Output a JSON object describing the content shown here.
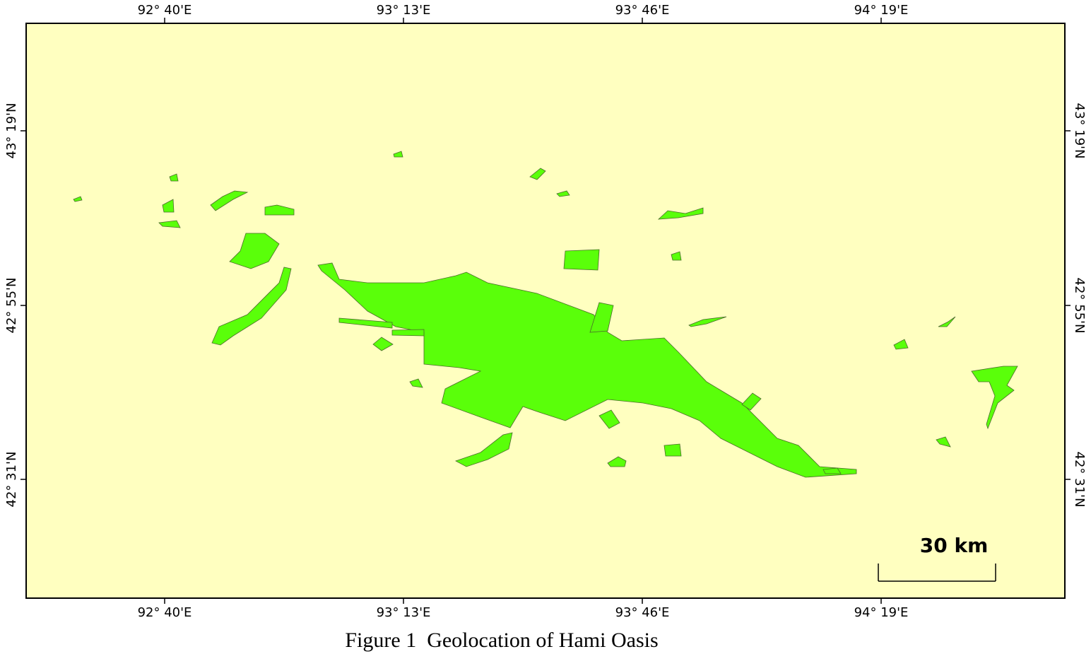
{
  "map": {
    "lon_labels": [
      "92° 40'E",
      "93° 13'E",
      "93° 46'E",
      "94° 19'E"
    ],
    "lat_labels": [
      "43° 19'N",
      "42° 55'N",
      "42° 31'N"
    ],
    "scale_label": "30 km"
  },
  "caption": "Figure 1  Geolocation of Hami Oasis"
}
